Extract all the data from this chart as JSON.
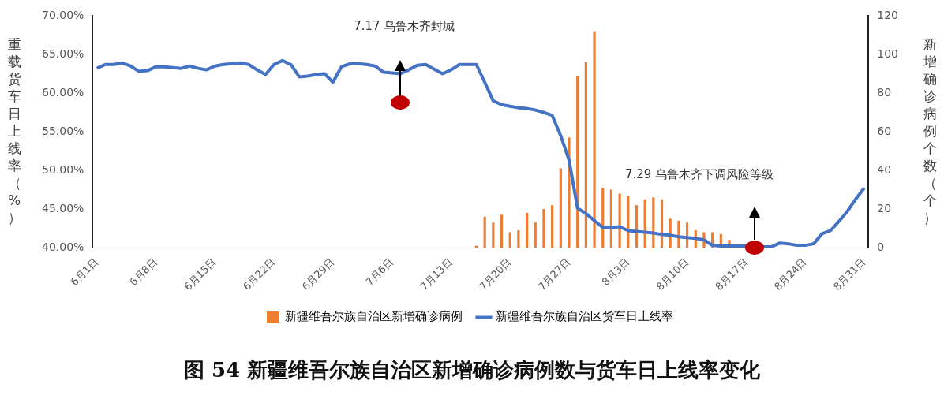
{
  "chart_data": {
    "type": "bar",
    "title": "图 54 新疆维吾尔族自治区新增确诊病例数与货车日上线率变化",
    "ylabel": "重载货车日上线率（%）",
    "y2label": "新增确诊病例个数（个）",
    "annotations": [
      "7.17 乌鲁木齐封城",
      "7.29 乌鲁木齐下调风险等级"
    ],
    "categories": [
      "6月1日",
      null,
      null,
      null,
      null,
      null,
      null,
      "6月8日",
      null,
      null,
      null,
      null,
      null,
      null,
      "6月15日",
      null,
      null,
      null,
      null,
      null,
      null,
      "6月22日",
      null,
      null,
      null,
      null,
      null,
      null,
      "6月29日",
      null,
      null,
      null,
      null,
      null,
      null,
      "7月6日",
      null,
      null,
      null,
      null,
      null,
      null,
      "7月13日",
      null,
      null,
      null,
      null,
      null,
      null,
      "7月20日",
      null,
      null,
      null,
      null,
      null,
      null,
      "7月27日",
      null,
      null,
      null,
      null,
      null,
      null,
      "8月3日",
      null,
      null,
      null,
      null,
      null,
      null,
      "8月10日",
      null,
      null,
      null,
      null,
      null,
      null,
      "8月17日",
      null,
      null,
      null,
      null,
      null,
      null,
      "8月24日",
      null,
      null,
      null,
      null,
      null,
      null,
      "8月31日"
    ],
    "series": [
      {
        "name": "新疆维吾尔族自治区新增确诊病例",
        "axis": "y2",
        "color": "#ed7d31",
        "values": [
          0,
          0,
          0,
          0,
          0,
          0,
          0,
          0,
          0,
          0,
          0,
          0,
          0,
          0,
          0,
          0,
          0,
          0,
          0,
          0,
          0,
          0,
          0,
          0,
          0,
          0,
          0,
          0,
          0,
          0,
          0,
          0,
          0,
          0,
          0,
          0,
          0,
          0,
          0,
          0,
          0,
          0,
          0,
          0,
          0,
          1,
          16,
          13,
          17,
          8,
          9,
          18,
          13,
          20,
          22,
          41,
          57,
          89,
          96,
          112,
          31,
          30,
          28,
          27,
          22,
          25,
          26,
          25,
          15,
          14,
          13,
          9,
          8,
          8,
          7,
          4,
          0,
          0,
          0,
          0,
          0,
          0,
          0,
          0,
          0,
          0,
          0,
          0,
          0,
          0,
          0,
          0
        ]
      },
      {
        "name": "新疆维吾尔族自治区货车日上线率",
        "type": "line",
        "axis": "y",
        "color": "#4472c4",
        "values": [
          63.2,
          63.7,
          63.7,
          63.9,
          63.5,
          62.8,
          62.9,
          63.4,
          63.4,
          63.3,
          63.2,
          63.5,
          63.2,
          63.0,
          63.5,
          63.7,
          63.8,
          63.9,
          63.7,
          63.0,
          62.4,
          63.7,
          64.2,
          63.7,
          62.1,
          62.2,
          62.4,
          62.5,
          61.4,
          63.4,
          63.8,
          63.8,
          63.7,
          63.5,
          62.7,
          62.6,
          62.5,
          63.0,
          63.6,
          63.7,
          63.1,
          62.5,
          63.0,
          63.7,
          63.7,
          63.7,
          61.4,
          59.0,
          58.5,
          58.3,
          58.1,
          58.0,
          57.8,
          57.5,
          57.1,
          54.5,
          51.3,
          45.1,
          44.4,
          43.5,
          42.6,
          42.6,
          42.7,
          42.2,
          42.1,
          42.0,
          41.9,
          41.7,
          41.6,
          41.4,
          41.3,
          41.2,
          41.0,
          40.3,
          40.2,
          40.2,
          40.2,
          40.2,
          40.2,
          40.1,
          40.1,
          40.6,
          40.5,
          40.3,
          40.3,
          40.5,
          41.8,
          42.2,
          43.4,
          44.7,
          46.3,
          47.7
        ]
      }
    ],
    "ylim": [
      40,
      70
    ],
    "yticks": [
      {
        "value": 40,
        "label": "40.00%"
      },
      {
        "value": 45,
        "label": "45.00%"
      },
      {
        "value": 50,
        "label": "50.00%"
      },
      {
        "value": 55,
        "label": "55.00%"
      },
      {
        "value": 60,
        "label": "60.00%"
      },
      {
        "value": 65,
        "label": "65.00%"
      },
      {
        "value": 70,
        "label": "70.00%"
      }
    ],
    "y2lim": [
      0,
      120
    ],
    "y2ticks": [
      0,
      20,
      40,
      60,
      80,
      100,
      120
    ],
    "grid": false,
    "legend": "bottom",
    "marker": "none",
    "line_style": "solid"
  }
}
